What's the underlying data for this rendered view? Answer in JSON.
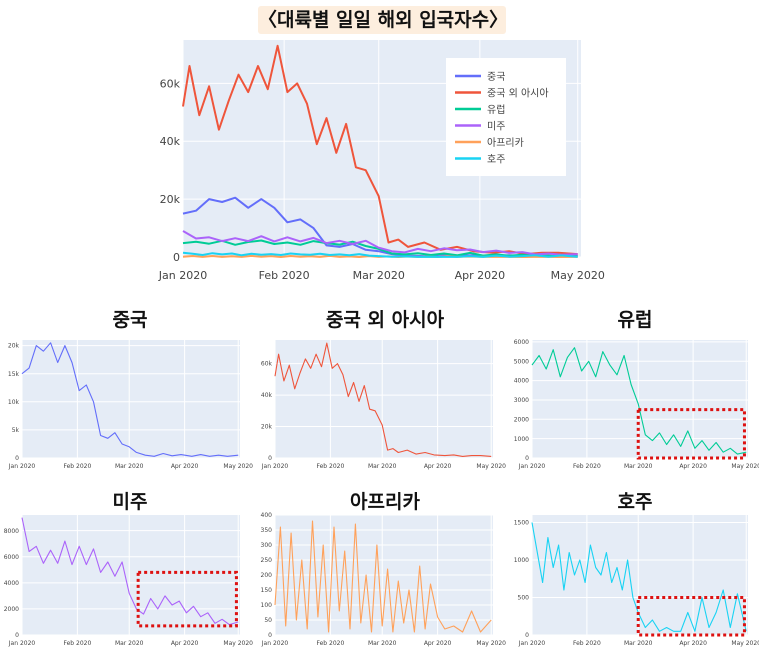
{
  "title": "〈대륙별 일일 해외 입국자수〉",
  "colors": {
    "china": "#636efa",
    "asia": "#ef553b",
    "europe": "#00cc96",
    "america": "#ab63fa",
    "africa": "#ffa15a",
    "oceania": "#19d3f3",
    "plot_bg": "#e5ecf6",
    "highlight": "#dd1111"
  },
  "chart_data": [
    {
      "type": "line",
      "title": "〈대륙별 일일 해외 입국자수〉",
      "x_range": [
        "2020-01-01",
        "2020-05-02"
      ],
      "x_ticks": [
        "Jan 2020",
        "Feb 2020",
        "Mar 2020",
        "Apr 2020",
        "May 2020"
      ],
      "y_ticks": [
        "0",
        "20k",
        "40k",
        "60k"
      ],
      "ylim": [
        0,
        75000
      ],
      "legend_position": "top-right",
      "series_ref": [
        "china",
        "asia",
        "europe",
        "america",
        "africa",
        "oceania"
      ]
    },
    {
      "type": "line",
      "title": "중국",
      "series_key": "china",
      "color_key": "china",
      "ylim": [
        0,
        21000
      ],
      "y_ticks": [
        "0",
        "5k",
        "10k",
        "15k",
        "20k"
      ],
      "x_ticks": [
        "Jan 2020",
        "Feb 2020",
        "Mar 2020",
        "Apr 2020",
        "May 2020"
      ]
    },
    {
      "type": "line",
      "title": "중국 외 아시아",
      "series_key": "asia",
      "color_key": "asia",
      "ylim": [
        0,
        75000
      ],
      "y_ticks": [
        "0",
        "20k",
        "40k",
        "60k"
      ],
      "x_ticks": [
        "Jan 2020",
        "Feb 2020",
        "Mar 2020",
        "Apr 2020",
        "May 2020"
      ]
    },
    {
      "type": "line",
      "title": "유럽",
      "series_key": "europe",
      "color_key": "europe",
      "ylim": [
        0,
        6100
      ],
      "y_ticks": [
        "0",
        "1000",
        "2000",
        "3000",
        "4000",
        "5000",
        "6000"
      ],
      "x_ticks": [
        "Jan 2020",
        "Feb 2020",
        "Mar 2020",
        "Apr 2020",
        "May 2020"
      ],
      "highlight": [
        "2020-03-01",
        "2020-04-30",
        0,
        2500
      ]
    },
    {
      "type": "line",
      "title": "미주",
      "series_key": "america",
      "color_key": "america",
      "ylim": [
        0,
        9200
      ],
      "y_ticks": [
        "0",
        "2000",
        "4000",
        "6000",
        "8000"
      ],
      "x_ticks": [
        "Jan 2020",
        "Feb 2020",
        "Mar 2020",
        "Apr 2020",
        "May 2020"
      ],
      "highlight": [
        "2020-03-06",
        "2020-04-30",
        700,
        4800
      ]
    },
    {
      "type": "line",
      "title": "아프리카",
      "series_key": "africa",
      "color_key": "africa",
      "ylim": [
        0,
        400
      ],
      "y_ticks": [
        "0",
        "50",
        "100",
        "150",
        "200",
        "250",
        "300",
        "350",
        "400"
      ],
      "x_ticks": [
        "Jan 2020",
        "Feb 2020",
        "Mar 2020",
        "Apr 2020",
        "May 2020"
      ]
    },
    {
      "type": "line",
      "title": "호주",
      "series_key": "oceania",
      "color_key": "oceania",
      "ylim": [
        0,
        1600
      ],
      "y_ticks": [
        "0",
        "500",
        "1000",
        "1500"
      ],
      "x_ticks": [
        "Jan 2020",
        "Feb 2020",
        "Mar 2020",
        "Apr 2020",
        "May 2020"
      ],
      "highlight": [
        "2020-03-01",
        "2020-04-30",
        0,
        500
      ]
    }
  ],
  "series": {
    "china": {
      "name": "중국",
      "dates": [
        "2020-01-01",
        "2020-01-05",
        "2020-01-09",
        "2020-01-13",
        "2020-01-17",
        "2020-01-21",
        "2020-01-25",
        "2020-01-29",
        "2020-02-02",
        "2020-02-06",
        "2020-02-10",
        "2020-02-14",
        "2020-02-18",
        "2020-02-22",
        "2020-02-26",
        "2020-03-01",
        "2020-03-05",
        "2020-03-10",
        "2020-03-15",
        "2020-03-20",
        "2020-03-25",
        "2020-03-30",
        "2020-04-05",
        "2020-04-10",
        "2020-04-15",
        "2020-04-20",
        "2020-04-25",
        "2020-05-01"
      ],
      "values": [
        15000,
        16000,
        20000,
        19000,
        20500,
        17000,
        20000,
        17000,
        12000,
        13000,
        10000,
        4000,
        3500,
        4500,
        2500,
        2000,
        1000,
        500,
        300,
        800,
        400,
        600,
        300,
        600,
        300,
        500,
        300,
        500
      ]
    },
    "asia": {
      "name": "중국 외 아시아",
      "dates": [
        "2020-01-01",
        "2020-01-03",
        "2020-01-06",
        "2020-01-09",
        "2020-01-12",
        "2020-01-15",
        "2020-01-18",
        "2020-01-21",
        "2020-01-24",
        "2020-01-27",
        "2020-01-30",
        "2020-02-02",
        "2020-02-05",
        "2020-02-08",
        "2020-02-11",
        "2020-02-14",
        "2020-02-17",
        "2020-02-20",
        "2020-02-23",
        "2020-02-26",
        "2020-03-01",
        "2020-03-04",
        "2020-03-07",
        "2020-03-10",
        "2020-03-15",
        "2020-03-20",
        "2020-03-25",
        "2020-03-30",
        "2020-04-05",
        "2020-04-10",
        "2020-04-15",
        "2020-04-20",
        "2020-04-25",
        "2020-05-01"
      ],
      "values": [
        52000,
        66000,
        49000,
        59000,
        44000,
        54000,
        63000,
        57000,
        66000,
        58000,
        73000,
        57000,
        60000,
        53000,
        39000,
        48000,
        36000,
        46000,
        31000,
        30000,
        21000,
        5000,
        6000,
        3500,
        5000,
        2500,
        3500,
        2000,
        1500,
        2000,
        1000,
        1500,
        1500,
        1000
      ]
    },
    "europe": {
      "name": "유럽",
      "dates": [
        "2020-01-01",
        "2020-01-05",
        "2020-01-09",
        "2020-01-13",
        "2020-01-17",
        "2020-01-21",
        "2020-01-25",
        "2020-01-29",
        "2020-02-02",
        "2020-02-06",
        "2020-02-10",
        "2020-02-14",
        "2020-02-18",
        "2020-02-22",
        "2020-02-26",
        "2020-03-01",
        "2020-03-05",
        "2020-03-09",
        "2020-03-13",
        "2020-03-17",
        "2020-03-21",
        "2020-03-25",
        "2020-03-29",
        "2020-04-02",
        "2020-04-06",
        "2020-04-10",
        "2020-04-14",
        "2020-04-18",
        "2020-04-22",
        "2020-04-26",
        "2020-05-01"
      ],
      "values": [
        4800,
        5300,
        4600,
        5600,
        4200,
        5200,
        5700,
        4500,
        5000,
        4200,
        5500,
        4800,
        4300,
        5300,
        3800,
        2800,
        1200,
        900,
        1300,
        700,
        1200,
        600,
        1400,
        500,
        900,
        400,
        800,
        300,
        500,
        200,
        300
      ]
    },
    "america": {
      "name": "미주",
      "dates": [
        "2020-01-01",
        "2020-01-05",
        "2020-01-09",
        "2020-01-13",
        "2020-01-17",
        "2020-01-21",
        "2020-01-25",
        "2020-01-29",
        "2020-02-02",
        "2020-02-06",
        "2020-02-10",
        "2020-02-14",
        "2020-02-18",
        "2020-02-22",
        "2020-02-26",
        "2020-03-01",
        "2020-03-05",
        "2020-03-09",
        "2020-03-13",
        "2020-03-17",
        "2020-03-21",
        "2020-03-25",
        "2020-03-29",
        "2020-04-02",
        "2020-04-06",
        "2020-04-10",
        "2020-04-14",
        "2020-04-18",
        "2020-04-22",
        "2020-04-26",
        "2020-05-01"
      ],
      "values": [
        9000,
        6400,
        6800,
        5500,
        6500,
        5500,
        7200,
        5400,
        6800,
        5400,
        6600,
        4800,
        5600,
        4500,
        5600,
        3200,
        2000,
        1600,
        2800,
        2000,
        3000,
        2300,
        2600,
        1700,
        2200,
        1400,
        1700,
        900,
        1200,
        800,
        1000
      ]
    },
    "africa": {
      "name": "아프리카",
      "dates": [
        "2020-01-01",
        "2020-01-04",
        "2020-01-07",
        "2020-01-10",
        "2020-01-13",
        "2020-01-16",
        "2020-01-19",
        "2020-01-22",
        "2020-01-25",
        "2020-01-28",
        "2020-01-31",
        "2020-02-03",
        "2020-02-06",
        "2020-02-09",
        "2020-02-12",
        "2020-02-15",
        "2020-02-18",
        "2020-02-21",
        "2020-02-24",
        "2020-02-27",
        "2020-03-01",
        "2020-03-04",
        "2020-03-07",
        "2020-03-10",
        "2020-03-13",
        "2020-03-16",
        "2020-03-19",
        "2020-03-22",
        "2020-03-25",
        "2020-03-28",
        "2020-04-01",
        "2020-04-05",
        "2020-04-10",
        "2020-04-15",
        "2020-04-20",
        "2020-04-25",
        "2020-05-01"
      ],
      "values": [
        100,
        360,
        30,
        340,
        50,
        250,
        20,
        380,
        60,
        300,
        10,
        360,
        80,
        280,
        20,
        370,
        40,
        200,
        10,
        300,
        30,
        220,
        10,
        180,
        40,
        150,
        10,
        230,
        20,
        170,
        60,
        20,
        30,
        10,
        80,
        10,
        50
      ]
    },
    "oceania": {
      "name": "호주",
      "dates": [
        "2020-01-01",
        "2020-01-04",
        "2020-01-07",
        "2020-01-10",
        "2020-01-13",
        "2020-01-16",
        "2020-01-19",
        "2020-01-22",
        "2020-01-25",
        "2020-01-28",
        "2020-01-31",
        "2020-02-03",
        "2020-02-06",
        "2020-02-09",
        "2020-02-12",
        "2020-02-15",
        "2020-02-18",
        "2020-02-21",
        "2020-02-24",
        "2020-02-27",
        "2020-03-01",
        "2020-03-05",
        "2020-03-09",
        "2020-03-13",
        "2020-03-17",
        "2020-03-21",
        "2020-03-25",
        "2020-03-29",
        "2020-04-02",
        "2020-04-06",
        "2020-04-10",
        "2020-04-14",
        "2020-04-18",
        "2020-04-22",
        "2020-04-26",
        "2020-05-01"
      ],
      "values": [
        1500,
        1100,
        700,
        1300,
        900,
        1200,
        600,
        1100,
        800,
        1000,
        700,
        1200,
        900,
        800,
        1100,
        700,
        900,
        600,
        1000,
        500,
        300,
        100,
        200,
        50,
        100,
        50,
        50,
        300,
        50,
        500,
        100,
        300,
        600,
        100,
        550,
        50
      ]
    }
  }
}
